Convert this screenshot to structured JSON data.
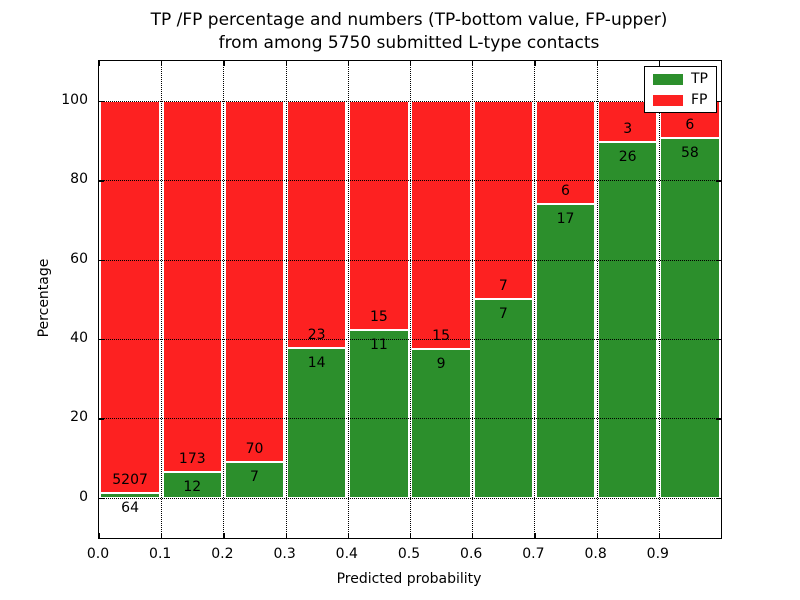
{
  "title": {
    "line1": "TP /FP percentage and numbers (TP-bottom value, FP-upper)",
    "line2": "from among 5750 submitted L-type contacts"
  },
  "chart_data": {
    "type": "bar",
    "stacked": true,
    "title": "TP /FP percentage and numbers (TP-bottom value, FP-upper) from among 5750 submitted L-type contacts",
    "xlabel": "Predicted probability",
    "ylabel": "Percentage",
    "xlim": [
      0.0,
      1.0
    ],
    "ylim": [
      -10.2,
      110.1
    ],
    "grid": true,
    "legend_position": "upper right",
    "bin_width": 0.1,
    "bin_starts": [
      0.0,
      0.1,
      0.2,
      0.3,
      0.4,
      0.5,
      0.6,
      0.7,
      0.8,
      0.9
    ],
    "x_tick_labels": [
      "0.0",
      "0.1",
      "0.2",
      "0.3",
      "0.4",
      "0.5",
      "0.6",
      "0.7",
      "0.8",
      "0.9"
    ],
    "y_ticks": [
      0,
      20,
      40,
      60,
      80,
      100
    ],
    "series": [
      {
        "name": "TP",
        "color": "#2c8f2c",
        "counts": [
          64,
          12,
          7,
          14,
          11,
          9,
          7,
          17,
          26,
          58
        ]
      },
      {
        "name": "FP",
        "color": "#fd2121",
        "counts": [
          5207,
          173,
          70,
          23,
          15,
          15,
          7,
          6,
          3,
          6
        ]
      }
    ],
    "note": "bar heights are TP percentage = TP/(TP+FP)*100 per bin; red fills up to 100%"
  }
}
